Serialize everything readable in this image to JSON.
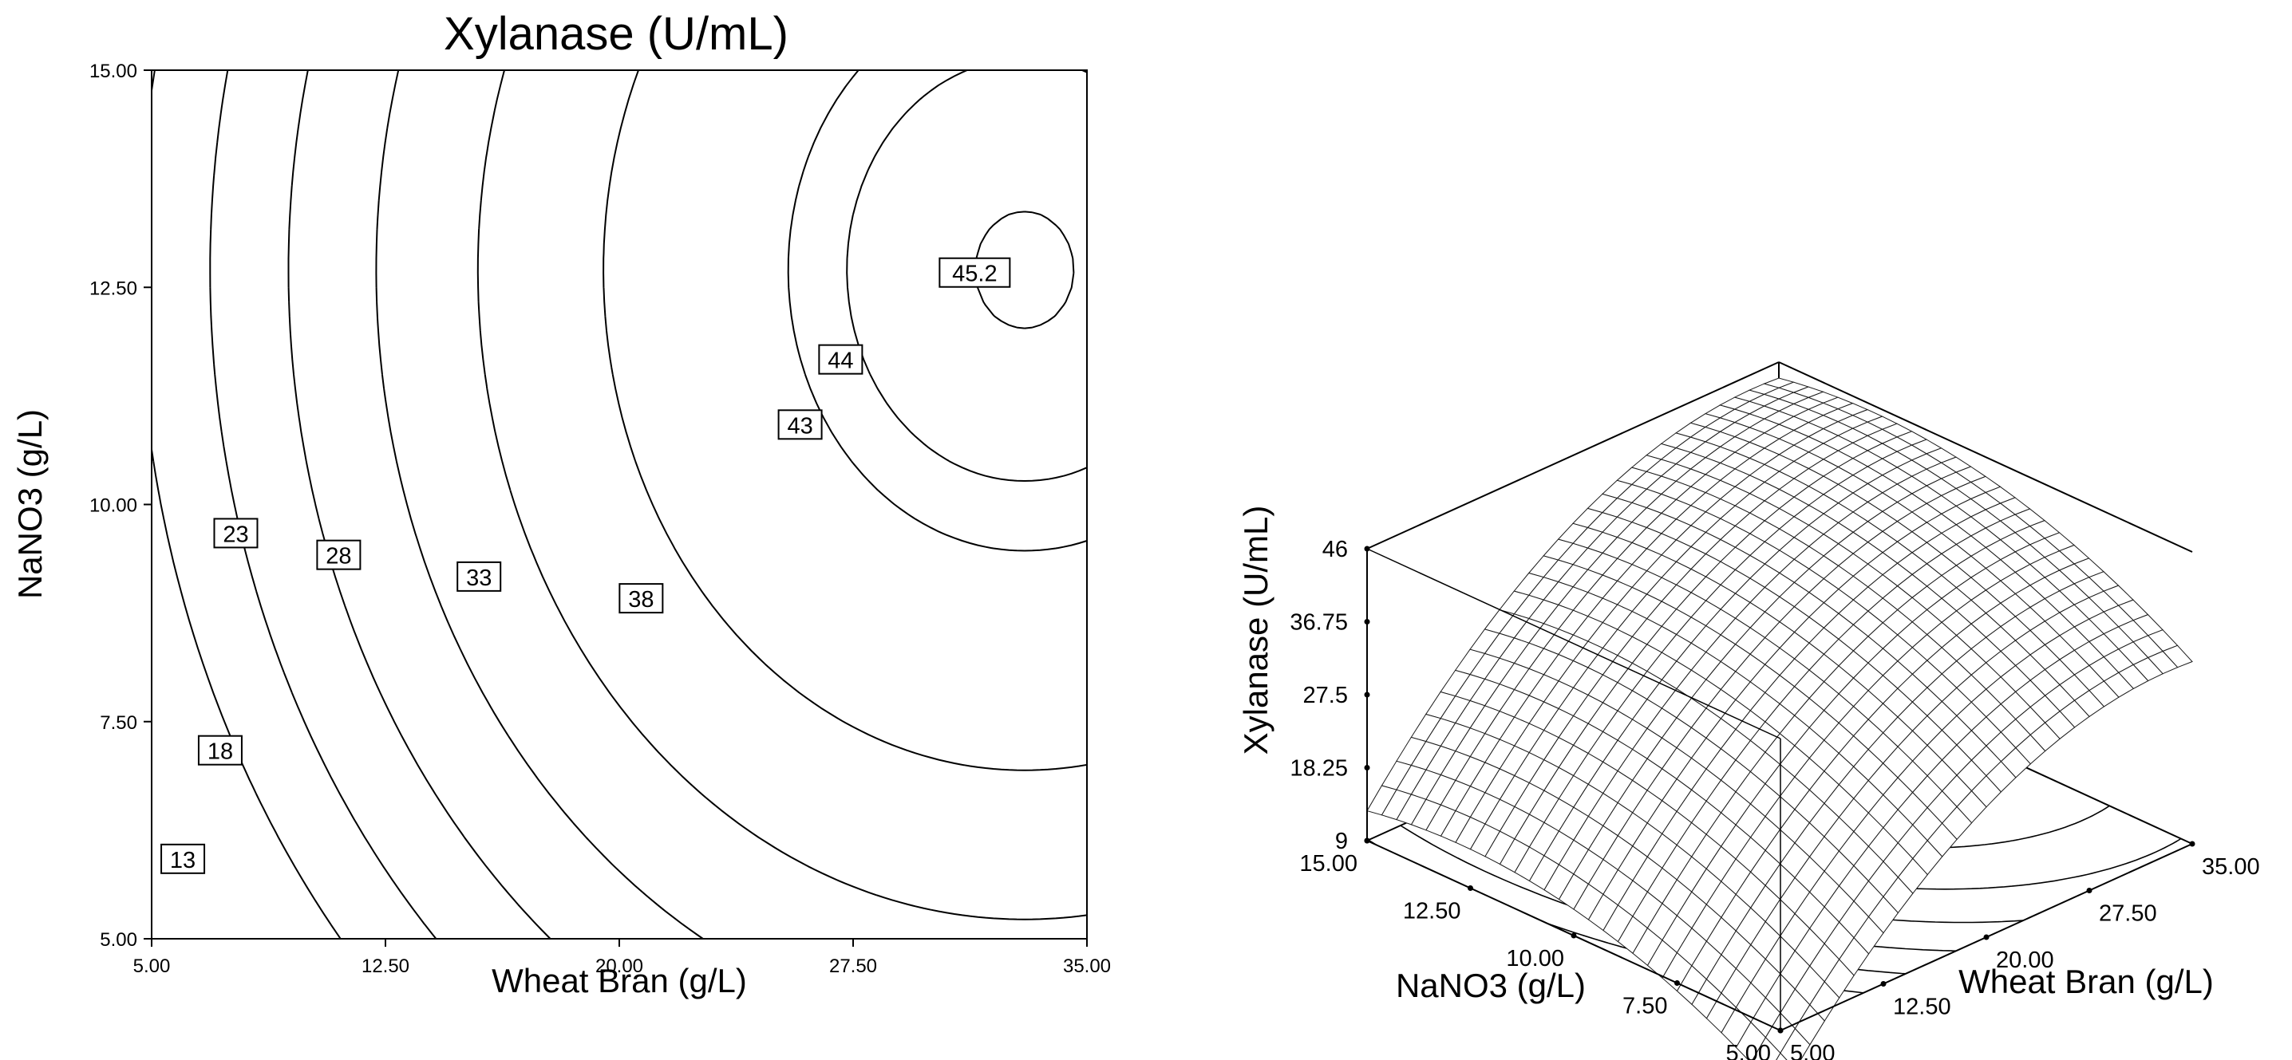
{
  "chart_data": [
    {
      "type": "contour",
      "title": "Xylanase (U/mL)",
      "xlabel": "Wheat Bran (g/L)",
      "ylabel": "NaNO3 (g/L)",
      "xlim": [
        5.0,
        35.0
      ],
      "ylim": [
        5.0,
        15.0
      ],
      "xticks": [
        "5.00",
        "12.50",
        "20.00",
        "27.50",
        "35.00"
      ],
      "yticks": [
        "5.00",
        "7.50",
        "10.00",
        "12.50",
        "15.00"
      ],
      "contour_levels": [
        {
          "label": "13",
          "x": 6.0,
          "y": 5.92
        },
        {
          "label": "18",
          "x": 7.2,
          "y": 7.17
        },
        {
          "label": "23",
          "x": 7.7,
          "y": 9.67
        },
        {
          "label": "28",
          "x": 11.0,
          "y": 9.42
        },
        {
          "label": "33",
          "x": 15.5,
          "y": 9.17
        },
        {
          "label": "38",
          "x": 20.7,
          "y": 8.92
        },
        {
          "label": "43",
          "x": 25.8,
          "y": 10.92
        },
        {
          "label": "44",
          "x": 27.1,
          "y": 11.67
        },
        {
          "label": "45.2",
          "x": 31.4,
          "y": 12.67
        }
      ],
      "optimum": {
        "x": 32.5,
        "y": 12.7
      },
      "grid": false
    },
    {
      "type": "surface",
      "zlabel": "Xylanase (U/mL)",
      "xlabel": "Wheat Bran (g/L)",
      "ylabel": "NaNO3 (g/L)",
      "xticks": [
        "5.00",
        "12.50",
        "20.00",
        "27.50",
        "35.00"
      ],
      "yticks": [
        "5.00",
        "7.50",
        "10.00",
        "12.50",
        "15.00"
      ],
      "zticks": [
        "9",
        "18.25",
        "27.5",
        "36.75",
        "46"
      ],
      "zlim": [
        9,
        46
      ]
    }
  ]
}
